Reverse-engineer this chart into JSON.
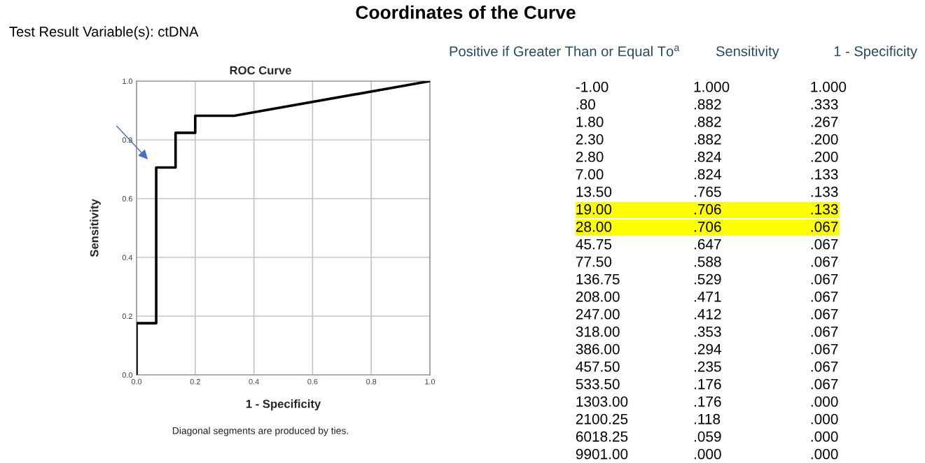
{
  "chart_data": [
    {
      "type": "line",
      "title": "ROC Curve",
      "xlabel": "1 - Specificity",
      "ylabel": "Sensitivity",
      "annotations": [
        "Diagonal segments are produced by ties."
      ],
      "x": [
        1.0,
        0.333,
        0.267,
        0.2,
        0.2,
        0.133,
        0.133,
        0.133,
        0.067,
        0.067,
        0.067,
        0.067,
        0.067,
        0.067,
        0.067,
        0.067,
        0.067,
        0.067,
        0.0,
        0.0,
        0.0,
        0.0
      ],
      "series": [
        {
          "color": "#000000",
          "values": [
            1.0,
            0.882,
            0.882,
            0.882,
            0.824,
            0.824,
            0.765,
            0.706,
            0.706,
            0.647,
            0.588,
            0.529,
            0.471,
            0.412,
            0.353,
            0.294,
            0.235,
            0.176,
            0.176,
            0.118,
            0.059,
            0.0
          ]
        }
      ],
      "xlim": [
        0,
        1
      ],
      "ylim": [
        0,
        1
      ],
      "xticks": [
        {
          "value": 0,
          "label": "0.0"
        },
        0.2,
        0.4,
        0.6,
        0.8,
        {
          "value": 1,
          "label": "1.0"
        }
      ],
      "yticks": [
        {
          "value": 0,
          "label": "0.0"
        },
        0.2,
        0.4,
        0.6,
        0.8,
        {
          "value": 1,
          "label": "1.0"
        }
      ],
      "grid": true,
      "marker": "none",
      "line_style": "solid"
    },
    {
      "type": "other",
      "title": "Coordinates of the Curve",
      "subtitle": "Test Result Variable(s): ctDNA",
      "ylabel": "Positive if Greater Than or Equal To$^{a}$",
      "categories": [
        "-1.00",
        ".80",
        "1.80",
        "2.30",
        "2.80",
        "7.00",
        "13.50",
        "19.00",
        "28.00",
        "45.75",
        "77.50",
        "136.75",
        "208.00",
        "247.00",
        "318.00",
        "386.00",
        "457.50",
        "533.50",
        "1303.00",
        "2100.25",
        "6018.25",
        "9901.00"
      ],
      "series": [
        {
          "name": "Sensitivity",
          "values": [
            1.0,
            0.882,
            0.882,
            0.882,
            0.824,
            0.824,
            0.765,
            0.706,
            0.706,
            0.647,
            0.588,
            0.529,
            0.471,
            0.412,
            0.353,
            0.294,
            0.235,
            0.176,
            0.176,
            0.118,
            0.059,
            0.0
          ],
          "value_labels": [
            "1.000",
            ".882",
            ".882",
            ".882",
            ".824",
            ".824",
            ".765",
            ".706",
            ".706",
            ".647",
            ".588",
            ".529",
            ".471",
            ".412",
            ".353",
            ".294",
            ".235",
            ".176",
            ".176",
            ".118",
            ".059",
            ".000"
          ]
        },
        {
          "name": "1 - Specificity",
          "values": [
            1.0,
            0.333,
            0.267,
            0.2,
            0.2,
            0.133,
            0.133,
            0.133,
            0.067,
            0.067,
            0.067,
            0.067,
            0.067,
            0.067,
            0.067,
            0.067,
            0.067,
            0.067,
            0.0,
            0.0,
            0.0,
            0.0
          ],
          "value_labels": [
            "1.000",
            ".333",
            ".267",
            ".200",
            ".200",
            ".133",
            ".133",
            ".133",
            ".067",
            ".067",
            ".067",
            ".067",
            ".067",
            ".067",
            ".067",
            ".067",
            ".067",
            ".067",
            ".000",
            ".000",
            ".000",
            ".000"
          ]
        }
      ]
    }
  ]
}
